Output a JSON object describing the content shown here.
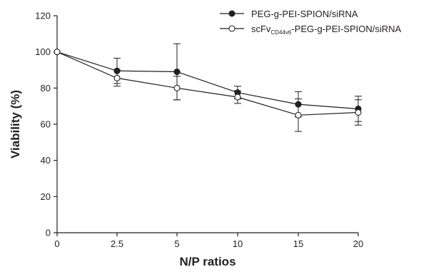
{
  "chart_data": {
    "type": "line",
    "title": "",
    "xlabel": "N/P ratios",
    "ylabel": "Viability (%)",
    "ylim": [
      0,
      120
    ],
    "y_ticks": [
      "0",
      "20",
      "40",
      "60",
      "80",
      "100",
      "120"
    ],
    "categories": [
      "0",
      "2.5",
      "5",
      "10",
      "15",
      "20"
    ],
    "grid": false,
    "legend_position": "top-right",
    "series": [
      {
        "name": "PEG-g-PEI-SPION/siRNA",
        "marker": "filled-circle",
        "values": [
          100,
          89.5,
          89,
          77.5,
          71,
          68.5
        ],
        "errors": [
          0,
          7,
          15.5,
          3.5,
          7,
          7
        ]
      },
      {
        "name_parts": [
          "scFv",
          "CD44v6",
          "-PEG-g-PEI-SPION/siRNA"
        ],
        "marker": "open-circle",
        "values": [
          100,
          85.5,
          80,
          75,
          65,
          66.5
        ],
        "errors": [
          0,
          4.5,
          6.5,
          3.5,
          9,
          7
        ]
      }
    ]
  }
}
